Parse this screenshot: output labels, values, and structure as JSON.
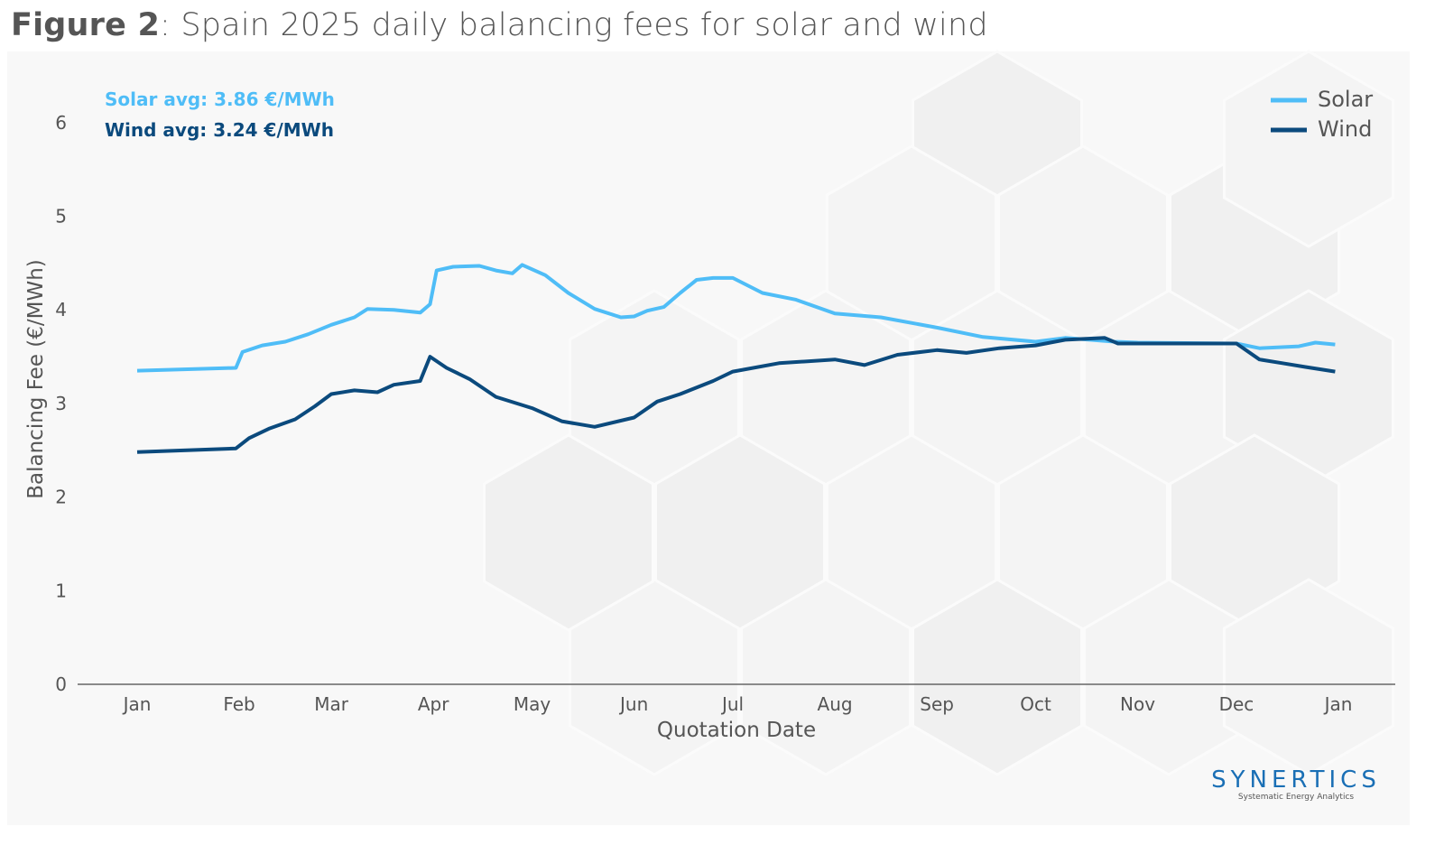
{
  "title": {
    "bold": "Figure 2",
    "rest": ": Spain 2025 daily balancing fees for solar and wind"
  },
  "logo": {
    "name": "SYNERTICS",
    "tagline": "Systematic Energy Analytics"
  },
  "chart_data": {
    "type": "line",
    "title": "Figure 2: Spain 2025 daily balancing fees for solar and wind",
    "xlabel": "Quotation Date",
    "ylabel": "Balancing Fee (€/MWh)",
    "ylim": [
      0,
      6.5
    ],
    "yticks": [
      0,
      1,
      2,
      3,
      4,
      5,
      6
    ],
    "xlim": [
      "2024-12-25",
      "2026-01-10"
    ],
    "xticks": [
      {
        "date": "2025-01-01",
        "label": "Jan"
      },
      {
        "date": "2025-02-01",
        "label": "Feb"
      },
      {
        "date": "2025-03-01",
        "label": "Mar"
      },
      {
        "date": "2025-04-01",
        "label": "Apr"
      },
      {
        "date": "2025-05-01",
        "label": "May"
      },
      {
        "date": "2025-06-01",
        "label": "Jun"
      },
      {
        "date": "2025-07-01",
        "label": "Jul"
      },
      {
        "date": "2025-08-01",
        "label": "Aug"
      },
      {
        "date": "2025-09-01",
        "label": "Sep"
      },
      {
        "date": "2025-10-01",
        "label": "Oct"
      },
      {
        "date": "2025-11-01",
        "label": "Nov"
      },
      {
        "date": "2025-12-01",
        "label": "Dec"
      },
      {
        "date": "2026-01-01",
        "label": "Jan"
      }
    ],
    "grid": false,
    "legend": "top-right",
    "annotations": [
      {
        "text": "Solar avg: 3.86 €/MWh",
        "color": "#4fbdf7"
      },
      {
        "text": "Wind avg: 3.24 €/MWh",
        "color": "#0b4a7d"
      }
    ],
    "series": [
      {
        "name": "Solar",
        "color": "#4fbdf7",
        "x": [
          "2025-01-01",
          "2025-01-31",
          "2025-02-02",
          "2025-02-08",
          "2025-02-15",
          "2025-02-22",
          "2025-03-01",
          "2025-03-08",
          "2025-03-12",
          "2025-03-20",
          "2025-03-28",
          "2025-03-31",
          "2025-04-02",
          "2025-04-07",
          "2025-04-15",
          "2025-04-20",
          "2025-04-25",
          "2025-04-28",
          "2025-05-05",
          "2025-05-12",
          "2025-05-20",
          "2025-05-28",
          "2025-06-01",
          "2025-06-05",
          "2025-06-10",
          "2025-06-15",
          "2025-06-20",
          "2025-06-25",
          "2025-07-01",
          "2025-07-10",
          "2025-07-20",
          "2025-08-01",
          "2025-08-15",
          "2025-09-01",
          "2025-09-15",
          "2025-10-01",
          "2025-10-10",
          "2025-10-25",
          "2025-11-01",
          "2025-12-01",
          "2025-12-08",
          "2025-12-20",
          "2025-12-25",
          "2025-12-31"
        ],
        "y": [
          3.35,
          3.38,
          3.55,
          3.62,
          3.66,
          3.74,
          3.84,
          3.92,
          4.01,
          4.0,
          3.97,
          4.06,
          4.42,
          4.46,
          4.47,
          4.42,
          4.39,
          4.48,
          4.37,
          4.18,
          4.01,
          3.92,
          3.93,
          3.99,
          4.03,
          4.18,
          4.32,
          4.34,
          4.34,
          4.18,
          4.11,
          3.96,
          3.92,
          3.81,
          3.71,
          3.66,
          3.7,
          3.66,
          3.65,
          3.64,
          3.59,
          3.61,
          3.65,
          3.63
        ]
      },
      {
        "name": "Wind",
        "color": "#0b4a7d",
        "x": [
          "2025-01-01",
          "2025-01-31",
          "2025-02-04",
          "2025-02-10",
          "2025-02-18",
          "2025-02-24",
          "2025-03-01",
          "2025-03-08",
          "2025-03-15",
          "2025-03-20",
          "2025-03-28",
          "2025-03-31",
          "2025-04-05",
          "2025-04-12",
          "2025-04-20",
          "2025-05-01",
          "2025-05-10",
          "2025-05-20",
          "2025-06-01",
          "2025-06-08",
          "2025-06-15",
          "2025-06-25",
          "2025-07-01",
          "2025-07-15",
          "2025-08-01",
          "2025-08-10",
          "2025-08-20",
          "2025-09-01",
          "2025-09-10",
          "2025-09-20",
          "2025-10-01",
          "2025-10-10",
          "2025-10-22",
          "2025-10-26",
          "2025-11-01",
          "2025-12-01",
          "2025-12-08",
          "2025-12-15",
          "2025-12-22",
          "2025-12-31"
        ],
        "y": [
          2.48,
          2.52,
          2.63,
          2.73,
          2.83,
          2.97,
          3.1,
          3.14,
          3.12,
          3.2,
          3.24,
          3.5,
          3.38,
          3.26,
          3.07,
          2.95,
          2.81,
          2.75,
          2.85,
          3.02,
          3.1,
          3.24,
          3.34,
          3.43,
          3.47,
          3.41,
          3.52,
          3.57,
          3.54,
          3.59,
          3.62,
          3.68,
          3.7,
          3.64,
          3.64,
          3.64,
          3.47,
          3.43,
          3.39,
          3.34
        ]
      }
    ]
  }
}
